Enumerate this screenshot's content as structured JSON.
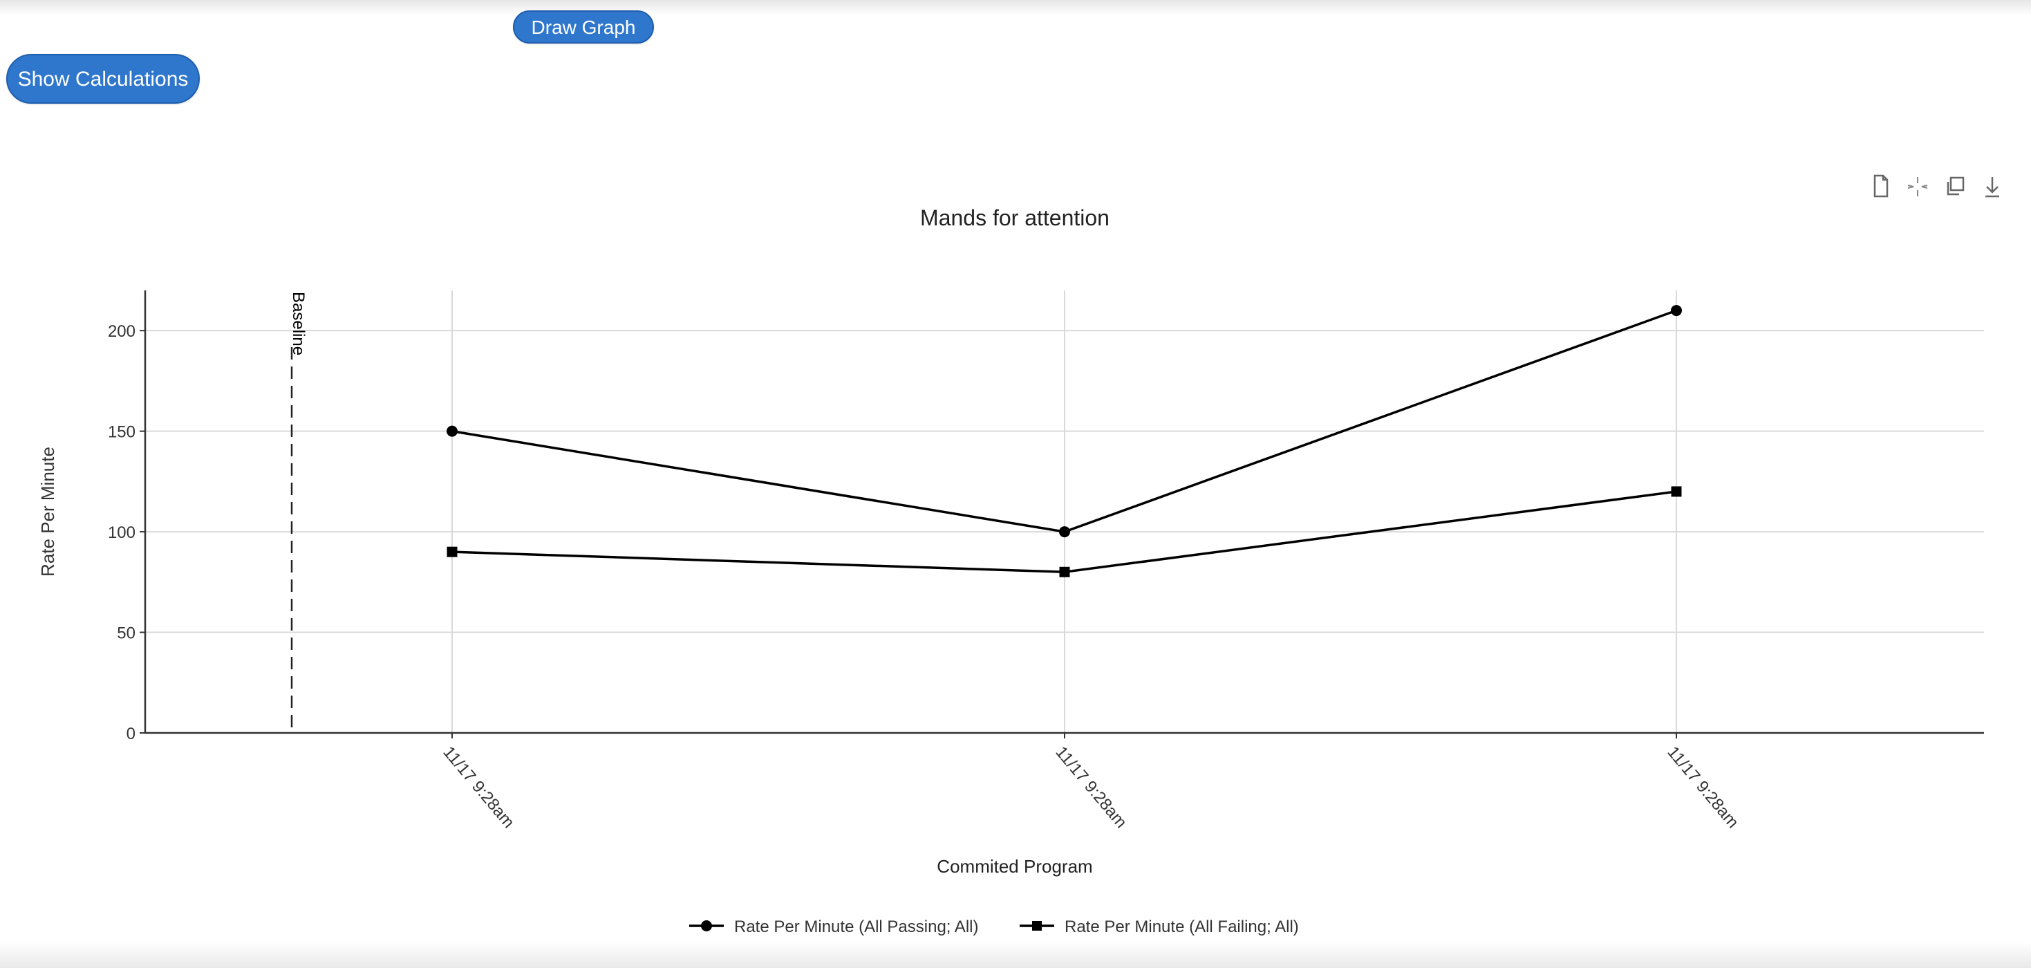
{
  "buttons": {
    "draw_graph": "Draw Graph",
    "show_calculations": "Show Calculations"
  },
  "toolbar": {
    "icons": [
      "document-icon",
      "collapse-icon",
      "copy-icon",
      "download-icon"
    ]
  },
  "colors": {
    "button": "#2f77cc",
    "series_line": "#000000",
    "grid": "#d9d9d9"
  },
  "chart_data": {
    "type": "line",
    "title": "Mands for attention",
    "xlabel": "Commited Program",
    "ylabel": "Rate Per Minute",
    "categories": [
      "11/17 9:28am",
      "11/17 9:28am",
      "11/17 9:28am"
    ],
    "ylim": [
      0,
      220
    ],
    "yticks": [
      0,
      50,
      100,
      150,
      200
    ],
    "grid": true,
    "legend_position": "bottom-center",
    "series": [
      {
        "name": "Rate Per Minute (All Passing; All)",
        "marker": "circle",
        "values": [
          150,
          100,
          210
        ]
      },
      {
        "name": "Rate Per Minute (All Failing; All)",
        "marker": "square",
        "values": [
          90,
          80,
          120
        ]
      }
    ],
    "phase_lines": [
      {
        "label": "Baseline",
        "position": "before-first-point",
        "style": "dashed"
      }
    ]
  }
}
